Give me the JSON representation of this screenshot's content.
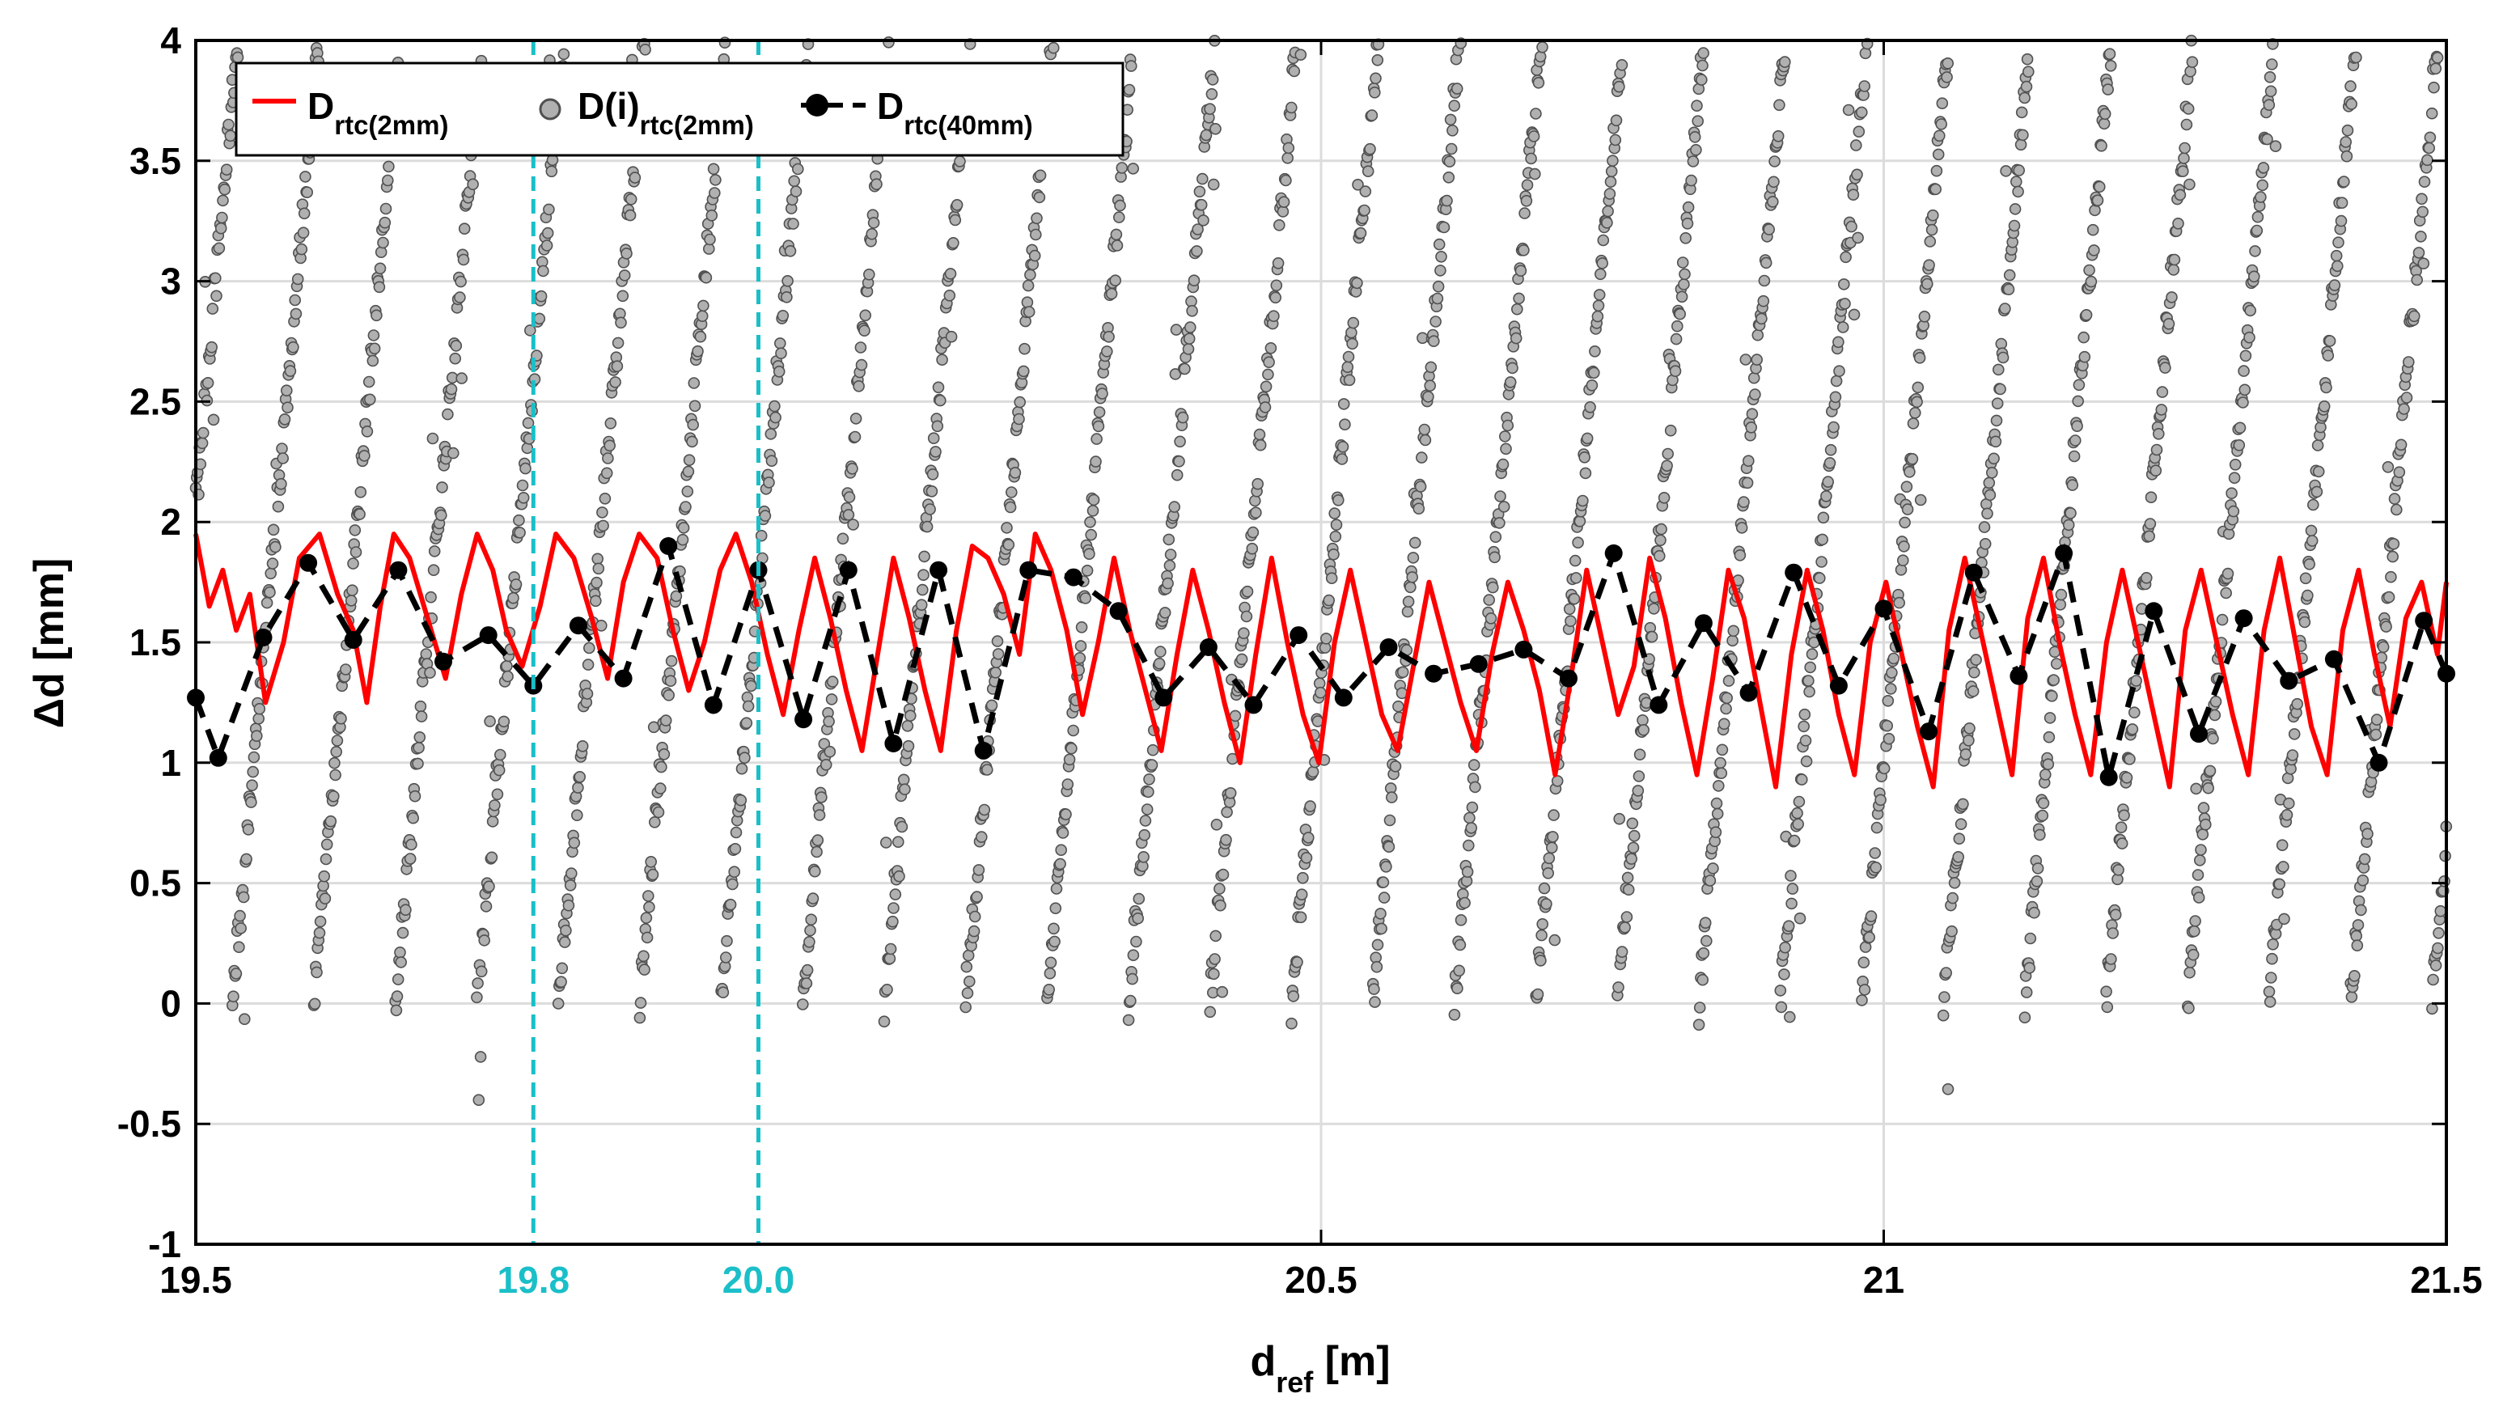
{
  "chart_data": {
    "type": "line",
    "title": "",
    "xlabel": {
      "main": "d",
      "sub": "ref",
      "unit": " [m]"
    },
    "ylabel": "Δd [mm]",
    "xlim": [
      19.5,
      21.5
    ],
    "ylim": [
      -1,
      4
    ],
    "grid": true,
    "x_ticks": [
      {
        "value": 19.5,
        "label": "19.5"
      },
      {
        "value": 20.5,
        "label": "20.5"
      },
      {
        "value": 21.0,
        "label": "21"
      },
      {
        "value": 21.5,
        "label": "21.5"
      }
    ],
    "y_ticks": [
      {
        "value": -1,
        "label": "-1"
      },
      {
        "value": -0.5,
        "label": "-0.5"
      },
      {
        "value": 0,
        "label": "0"
      },
      {
        "value": 0.5,
        "label": "0.5"
      },
      {
        "value": 1,
        "label": "1"
      },
      {
        "value": 1.5,
        "label": "1.5"
      },
      {
        "value": 2,
        "label": "2"
      },
      {
        "value": 2.5,
        "label": "2.5"
      },
      {
        "value": 3,
        "label": "3"
      },
      {
        "value": 3.5,
        "label": "3.5"
      },
      {
        "value": 4,
        "label": "4"
      }
    ],
    "reference_lines": [
      {
        "x": 19.8,
        "label": "19.8",
        "color": "#1ABFC8"
      },
      {
        "x": 20.0,
        "label": "20.0",
        "color": "#1ABFC8"
      }
    ],
    "legend_position": "top-left",
    "series": [
      {
        "name": "D_rtc(2mm)",
        "legend_main": "D",
        "legend_sub": "rtc(2mm)",
        "style": "line",
        "color": "#FF0000",
        "x": [
          19.5,
          19.512,
          19.524,
          19.536,
          19.548,
          19.562,
          19.578,
          19.592,
          19.61,
          19.626,
          19.64,
          19.652,
          19.664,
          19.676,
          19.69,
          19.706,
          19.722,
          19.736,
          19.75,
          19.764,
          19.776,
          19.79,
          19.806,
          19.82,
          19.836,
          19.852,
          19.866,
          19.88,
          19.894,
          19.91,
          19.924,
          19.938,
          19.952,
          19.966,
          19.98,
          19.994,
          20.008,
          20.022,
          20.036,
          20.05,
          20.064,
          20.078,
          20.092,
          20.106,
          20.12,
          20.134,
          20.148,
          20.162,
          20.176,
          20.19,
          20.204,
          20.218,
          20.232,
          20.246,
          20.26,
          20.274,
          20.288,
          20.302,
          20.316,
          20.33,
          20.344,
          20.358,
          20.372,
          20.386,
          20.4,
          20.414,
          20.428,
          20.442,
          20.456,
          20.47,
          20.484,
          20.498,
          20.512,
          20.526,
          20.54,
          20.554,
          20.568,
          20.582,
          20.596,
          20.61,
          20.624,
          20.638,
          20.652,
          20.666,
          20.68,
          20.694,
          20.708,
          20.722,
          20.736,
          20.75,
          20.764,
          20.778,
          20.792,
          20.806,
          20.82,
          20.834,
          20.848,
          20.862,
          20.876,
          20.89,
          20.904,
          20.918,
          20.932,
          20.946,
          20.96,
          20.974,
          20.988,
          21.002,
          21.016,
          21.03,
          21.044,
          21.058,
          21.072,
          21.086,
          21.1,
          21.114,
          21.128,
          21.142,
          21.156,
          21.17,
          21.184,
          21.198,
          21.212,
          21.226,
          21.24,
          21.254,
          21.268,
          21.282,
          21.296,
          21.31,
          21.324,
          21.338,
          21.352,
          21.366,
          21.38,
          21.394,
          21.408,
          21.422,
          21.436,
          21.45,
          21.464,
          21.478,
          21.492,
          21.5
        ],
        "y": [
          1.95,
          1.65,
          1.8,
          1.55,
          1.7,
          1.25,
          1.5,
          1.85,
          1.95,
          1.7,
          1.55,
          1.25,
          1.65,
          1.95,
          1.85,
          1.6,
          1.35,
          1.7,
          1.95,
          1.8,
          1.55,
          1.4,
          1.65,
          1.95,
          1.85,
          1.6,
          1.35,
          1.75,
          1.95,
          1.85,
          1.55,
          1.3,
          1.5,
          1.8,
          1.95,
          1.75,
          1.45,
          1.2,
          1.55,
          1.85,
          1.6,
          1.3,
          1.05,
          1.45,
          1.85,
          1.6,
          1.3,
          1.05,
          1.55,
          1.9,
          1.85,
          1.7,
          1.45,
          1.95,
          1.8,
          1.55,
          1.2,
          1.5,
          1.85,
          1.55,
          1.3,
          1.05,
          1.45,
          1.8,
          1.55,
          1.25,
          1.0,
          1.45,
          1.85,
          1.5,
          1.2,
          1.0,
          1.5,
          1.8,
          1.5,
          1.2,
          1.05,
          1.4,
          1.75,
          1.5,
          1.25,
          1.05,
          1.45,
          1.75,
          1.55,
          1.3,
          0.95,
          1.35,
          1.8,
          1.5,
          1.2,
          1.4,
          1.85,
          1.6,
          1.25,
          0.95,
          1.35,
          1.8,
          1.6,
          1.25,
          0.9,
          1.45,
          1.8,
          1.55,
          1.2,
          0.95,
          1.5,
          1.75,
          1.45,
          1.15,
          0.9,
          1.55,
          1.85,
          1.55,
          1.25,
          0.95,
          1.6,
          1.85,
          1.5,
          1.2,
          0.95,
          1.5,
          1.8,
          1.5,
          1.2,
          0.9,
          1.55,
          1.8,
          1.5,
          1.2,
          0.95,
          1.55,
          1.85,
          1.5,
          1.15,
          0.95,
          1.55,
          1.8,
          1.45,
          1.15,
          1.6,
          1.75,
          1.45,
          1.75
        ]
      },
      {
        "name": "D(i)_rtc(2mm)",
        "legend_main": "D(i)",
        "legend_sub": "rtc(2mm)",
        "style": "scatter",
        "color": "#B0B0B0",
        "edge_color": "#505050",
        "description_of_generation": "sawtooth ramps from about 0 to about 3.5-4 mm repeating each 0.0724 m, plus outliers",
        "ramp_period_m": 0.0724,
        "ramp_slope_mm_per_m": 52,
        "ramp_min_mm": 0.0,
        "points_per_ramp": 110
      },
      {
        "name": "D_rtc(40mm)",
        "legend_main": "D",
        "legend_sub": "rtc(40mm)",
        "style": "line-dashed-markers",
        "color": "#000000",
        "x": [
          19.5,
          19.52,
          19.56,
          19.6,
          19.64,
          19.68,
          19.72,
          19.76,
          19.8,
          19.84,
          19.88,
          19.92,
          19.96,
          20.0,
          20.04,
          20.08,
          20.12,
          20.16,
          20.2,
          20.24,
          20.28,
          20.32,
          20.36,
          20.4,
          20.44,
          20.48,
          20.52,
          20.56,
          20.6,
          20.64,
          20.68,
          20.72,
          20.76,
          20.8,
          20.84,
          20.88,
          20.92,
          20.96,
          21.0,
          21.04,
          21.08,
          21.12,
          21.16,
          21.2,
          21.24,
          21.28,
          21.32,
          21.36,
          21.4,
          21.44,
          21.48,
          21.5
        ],
        "y": [
          1.27,
          1.02,
          1.52,
          1.83,
          1.51,
          1.8,
          1.42,
          1.53,
          1.32,
          1.57,
          1.35,
          1.9,
          1.24,
          1.8,
          1.18,
          1.8,
          1.08,
          1.8,
          1.05,
          1.8,
          1.77,
          1.63,
          1.27,
          1.48,
          1.24,
          1.53,
          1.27,
          1.48,
          1.37,
          1.41,
          1.47,
          1.35,
          1.87,
          1.24,
          1.58,
          1.29,
          1.79,
          1.32,
          1.64,
          1.13,
          1.79,
          1.36,
          1.87,
          0.94,
          1.63,
          1.12,
          1.6,
          1.34,
          1.43,
          1.0,
          1.59,
          1.37
        ]
      }
    ]
  }
}
